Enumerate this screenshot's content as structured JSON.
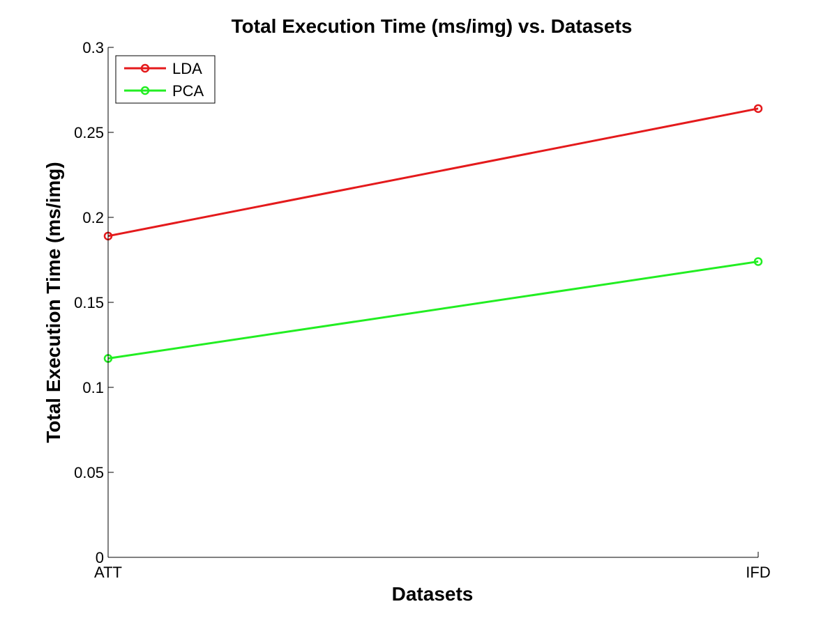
{
  "chart_data": {
    "type": "line",
    "title": "Total Execution Time (ms/img) vs. Datasets",
    "xlabel": "Datasets",
    "ylabel": "Total Execution Time (ms/img)",
    "categories": [
      "ATT",
      "IFD"
    ],
    "ylim": [
      0,
      0.3
    ],
    "yticks": [
      "0",
      "0.05",
      "0.1",
      "0.15",
      "0.2",
      "0.25",
      "0.3"
    ],
    "ytick_values": [
      0,
      0.05,
      0.1,
      0.15,
      0.2,
      0.25,
      0.3
    ],
    "grid": false,
    "legend_position": "top-left",
    "series": [
      {
        "name": "LDA",
        "color": "#e41a1c",
        "marker": "circle",
        "values": [
          0.189,
          0.264
        ]
      },
      {
        "name": "PCA",
        "color": "#22ee22",
        "marker": "circle",
        "values": [
          0.117,
          0.174
        ]
      }
    ]
  }
}
